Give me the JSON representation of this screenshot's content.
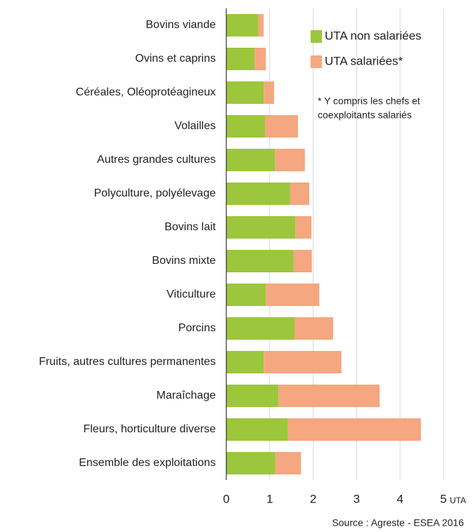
{
  "chart_data": {
    "type": "bar",
    "orientation": "horizontal",
    "stacked": true,
    "categories": [
      "Bovins viande",
      "Ovins et caprins",
      "Céréales, Oléoprotéagineux",
      "Volailles",
      "Autres grandes cultures",
      "Polyculture, polyélevage",
      "Bovins lait",
      "Bovins mixte",
      "Viticulture",
      "Porcins",
      "Fruits, autres cultures permanentes",
      "Maraîchage",
      "Fleurs, horticulture diverse",
      "Ensemble des exploitations"
    ],
    "series": [
      {
        "name": "UTA non salariées",
        "color": "#9cc63c",
        "values": [
          0.74,
          0.65,
          0.86,
          0.89,
          1.12,
          1.47,
          1.59,
          1.55,
          0.91,
          1.57,
          0.86,
          1.2,
          1.42,
          1.13
        ]
      },
      {
        "name": "UTA salariées*",
        "color": "#f5a77f",
        "values": [
          0.12,
          0.26,
          0.24,
          0.76,
          0.69,
          0.44,
          0.37,
          0.42,
          1.23,
          0.89,
          1.79,
          2.33,
          3.06,
          0.59
        ]
      }
    ],
    "xlim": [
      0,
      5
    ],
    "xticks": [
      0,
      1,
      2,
      3,
      4,
      5
    ],
    "x_axis_label": "UTA",
    "grid": true,
    "annotation": [
      "* Y compris les chefs et",
      "coexploitants salariés"
    ],
    "source": "Source : Agreste - ESEA 2016"
  }
}
